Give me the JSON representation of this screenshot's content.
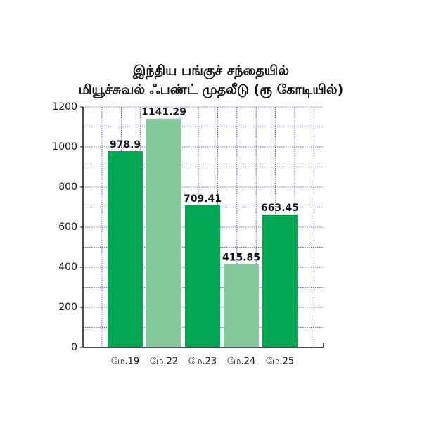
{
  "chart_data": {
    "type": "bar",
    "title": [
      "இந்திய பங்குச் சந்தையில்",
      "மியூச்சுவல் ஃபண்ட் முதலீடு (ரூ கோடியில்)"
    ],
    "categories": [
      "மே.19",
      "மே.22",
      "மே.23",
      "மே.24",
      "மே.25"
    ],
    "values": [
      978.9,
      1141.29,
      709.41,
      415.85,
      663.45
    ],
    "colors": [
      "#00a651",
      "#86c99b",
      "#00a651",
      "#86c99b",
      "#00a651"
    ],
    "ylim": [
      0,
      1200
    ],
    "yticks": [
      0,
      200,
      400,
      600,
      800,
      1000,
      1200
    ],
    "minor_yticks": [
      100,
      300,
      500,
      700,
      900,
      1100
    ],
    "grid": true,
    "grid_color": "#3a3aa8"
  }
}
